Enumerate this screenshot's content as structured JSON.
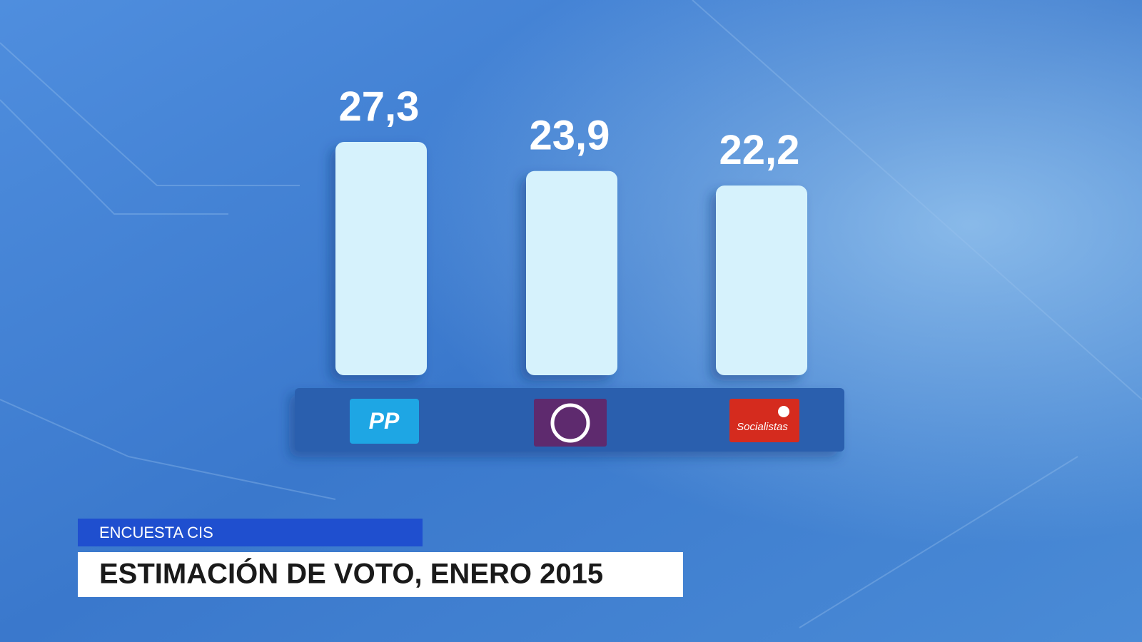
{
  "chart_data": {
    "type": "bar",
    "title": "ESTIMACIÓN DE VOTO, ENERO 2015",
    "subtitle": "ENCUESTA CIS",
    "categories": [
      "PP",
      null,
      "Socialistas"
    ],
    "values": [
      27.3,
      23.9,
      22.2
    ],
    "value_labels": [
      "27,3",
      "23,9",
      "22,2"
    ],
    "color": "#d6f2fc"
  }
}
